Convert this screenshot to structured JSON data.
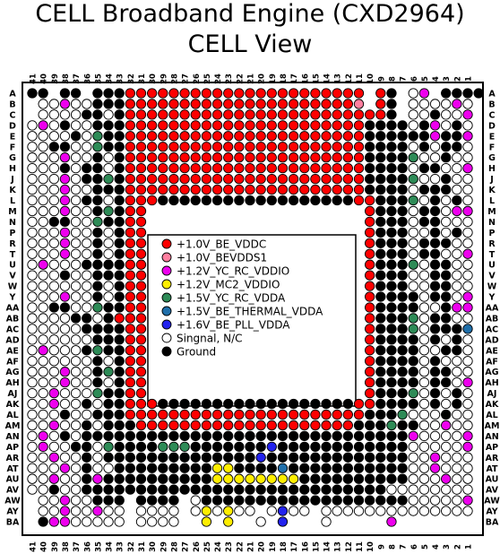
{
  "title_line1": "CELL Broadband Engine (CXD2964)",
  "title_line2": "CELL View",
  "columns": [
    "41",
    "40",
    "39",
    "38",
    "37",
    "36",
    "35",
    "34",
    "33",
    "32",
    "31",
    "30",
    "29",
    "28",
    "27",
    "26",
    "25",
    "24",
    "23",
    "22",
    "21",
    "20",
    "19",
    "18",
    "17",
    "16",
    "15",
    "14",
    "13",
    "12",
    "11",
    "10",
    "9",
    "8",
    "7",
    "6",
    "5",
    "4",
    "3",
    "2",
    "1"
  ],
  "rows": [
    "A",
    "B",
    "C",
    "D",
    "E",
    "F",
    "G",
    "H",
    "J",
    "K",
    "L",
    "M",
    "N",
    "P",
    "R",
    "T",
    "U",
    "V",
    "W",
    "Y",
    "AA",
    "AB",
    "AC",
    "AD",
    "AE",
    "AF",
    "AG",
    "AH",
    "AJ",
    "AK",
    "AL",
    "AM",
    "AN",
    "AP",
    "AR",
    "AT",
    "AU",
    "AV",
    "AW",
    "AY",
    "BA"
  ],
  "colors": {
    "background": "#ffffff",
    "outline": "#000000",
    "r": "#ff0000",
    "p": "#ff7f9f",
    "m": "#ee00ee",
    "y": "#ffee00",
    "g": "#2e8b57",
    "t": "#1f6faa",
    "b": "#2222ee",
    "o": "#ffffff",
    "k": "#000000"
  },
  "legend": [
    {
      "key": "r",
      "label": "+1.0V_BE_VDDC"
    },
    {
      "key": "p",
      "label": "+1.0V_BEVDDS1"
    },
    {
      "key": "m",
      "label": "+1.2V_YC_RC_VDDIO"
    },
    {
      "key": "y",
      "label": "+1.2V_MC2_VDDIO"
    },
    {
      "key": "g",
      "label": "+1.5V_YC_RC_VDDA"
    },
    {
      "key": "t",
      "label": "+1.5V_BE_THERMAL_VDDA"
    },
    {
      "key": "b",
      "label": "+1.6V_BE_PLL_VDDA"
    },
    {
      "key": "o",
      "label": "Singnal, N/C"
    },
    {
      "key": "k",
      "label": "Ground"
    }
  ],
  "center_cutout": {
    "rows": [
      13,
      29
    ],
    "cols": [
      11,
      30
    ]
  },
  "grid": [
    "kk.kk.kkkrrrrrrrrrrrrrrrrrrrrrr.rk.om.kkkk",
    ".oomookkkrrrrrrrrrrrrrrrrrrrrrp.rk.oooomo",
    ".ooookkokrrrrrrrrrrrrrrrrrrrrrrrrk.ookoom",
    "omokookkkrrrrrrrrrrrrrrrrrrrrrrkkkkokmoko",
    "ooookogkkrrrrrrrrrrrrrrrrrrrrrrkkkkkkmkkm",
    "ookkoogkkrrrrrrrrrrrrrrrrrrrrrrkkkkokokko",
    "ooomookokrrrrrrrrrrrrrrrrrrrrrrkkkkgookoo",
    "oookokkokrrrrrrrrrrrrrrrrrrrrrrkkkkokkoom",
    "ooomokkgkrrrrrrrrrrrrrrrrrrrrrrkkkkgookoo",
    "ooomookkkrrrrrrrrrrrrrrrrrrrrrrkkkkokkkoo",
    "ooomokkokrrrkkkkkkkkkkkkkkkkkkrrkkkgokoko",
    "ooomookgkrr....................rkkkokkomm",
    "ookkoogkkrr....................rkkkokkooo",
    "ooomookokrr....................rkkkookoko",
    "ooomookokrr....................rkkkokkkoo",
    "ooomookokrr....................rkkkokkoom",
    "omoookkkkrr....................rkkkgokkoo",
    "oookookkkrr....................rkkkookkoo",
    "ooooookokrr....................rkkkookkoo",
    "ooomookokrr....................rkkkkokkom",
    "ookkoogkkrr....................rkkkkookmm",
    "ooookkokrrr....................rkkkgokkoo",
    "oooookkkkrr....................rkkkgokkkt",
    "ooooookkkrr....................rkkkkokoko",
    "omoookgkkrr....................rkkkkookko",
    "ooooookokrr....................rkkkkokooo",
    "ooomookgkrr....................rkkkkokkoo",
    "ooomookokrr....................rkkkkokkom",
    "oomooogkkrr....................rkkkgokoko",
    "oomookokkrrrkkkkkkkkkkkkkkkkkkrrkkkkokoko",
    "oookookkkrrrrrrrrrrrrrrrrrrrrrrkkkgoookoo",
    "oomookokkkrrrrrrrrrrrrrrrrrrrrkkkgkkoomoo",
    "omokokkkkkkkkkkkkkkkkkkkkkkkkkkkkkkmoooom",
    "omookkogkkkkgggkkkkkkkbkkkkkkkkkkkkooooom",
    "oomookokkkkkkkkkkkkkkbkkkkkkkkkkkkkoomooo",
    "ooomokookkkkkkkkkyykkkktkkkkkkkkkkkoomooo",
    "oomookmkkkkkkkkkkyyyyyyyykkkkkkkkkkooomoo",
    "ookookkkkkkkkkkkkkkkkkkkkkkkkkkkkoooooooo",
    ".oomookkk.kkkk.okkkkkkkkkkkkkkkkkkkooooom",
    ".oomoomoo.oooo.oyoyoo.oboo.oooooooooooooo",
    ".kmmooooo.oooo..y.y..o.b...o.....m......."
  ]
}
